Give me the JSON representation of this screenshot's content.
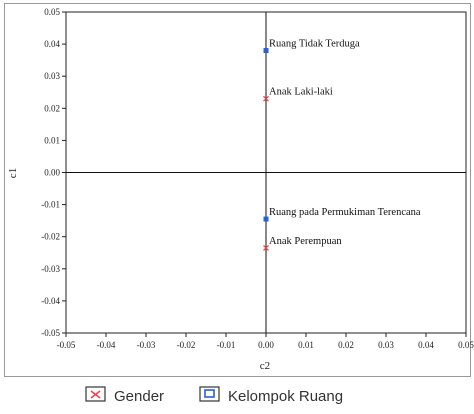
{
  "chart_data": {
    "type": "scatter",
    "xlabel": "c2",
    "ylabel": "c1",
    "xlim": [
      -0.05,
      0.05
    ],
    "ylim": [
      -0.05,
      0.05
    ],
    "x_ticks": [
      "-0.05",
      "-0.04",
      "-0.03",
      "-0.02",
      "-0.01",
      "0.00",
      "0.01",
      "0.02",
      "0.03",
      "0.04",
      "0.05"
    ],
    "y_ticks": [
      "0.05",
      "0.04",
      "0.03",
      "0.02",
      "0.01",
      "0.00",
      "-0.01",
      "-0.02",
      "-0.03",
      "-0.04",
      "-0.05"
    ],
    "grid": false,
    "series": [
      {
        "name": "Gender",
        "marker": "x",
        "color": "#e8474c",
        "points": [
          {
            "label": "Anak Laki-laki",
            "x": 0.0,
            "y": 0.023
          },
          {
            "label": "Anak Perempuan",
            "x": 0.0,
            "y": -0.0235
          }
        ]
      },
      {
        "name": "Kelompok Ruang",
        "marker": "square",
        "color": "#2b5fd6",
        "points": [
          {
            "label": "Ruang Tidak Terduga",
            "x": 0.0,
            "y": 0.038
          },
          {
            "label": "Ruang pada Permukiman Terencana",
            "x": 0.0,
            "y": -0.0145
          }
        ]
      }
    ],
    "legend_position": "bottom"
  }
}
